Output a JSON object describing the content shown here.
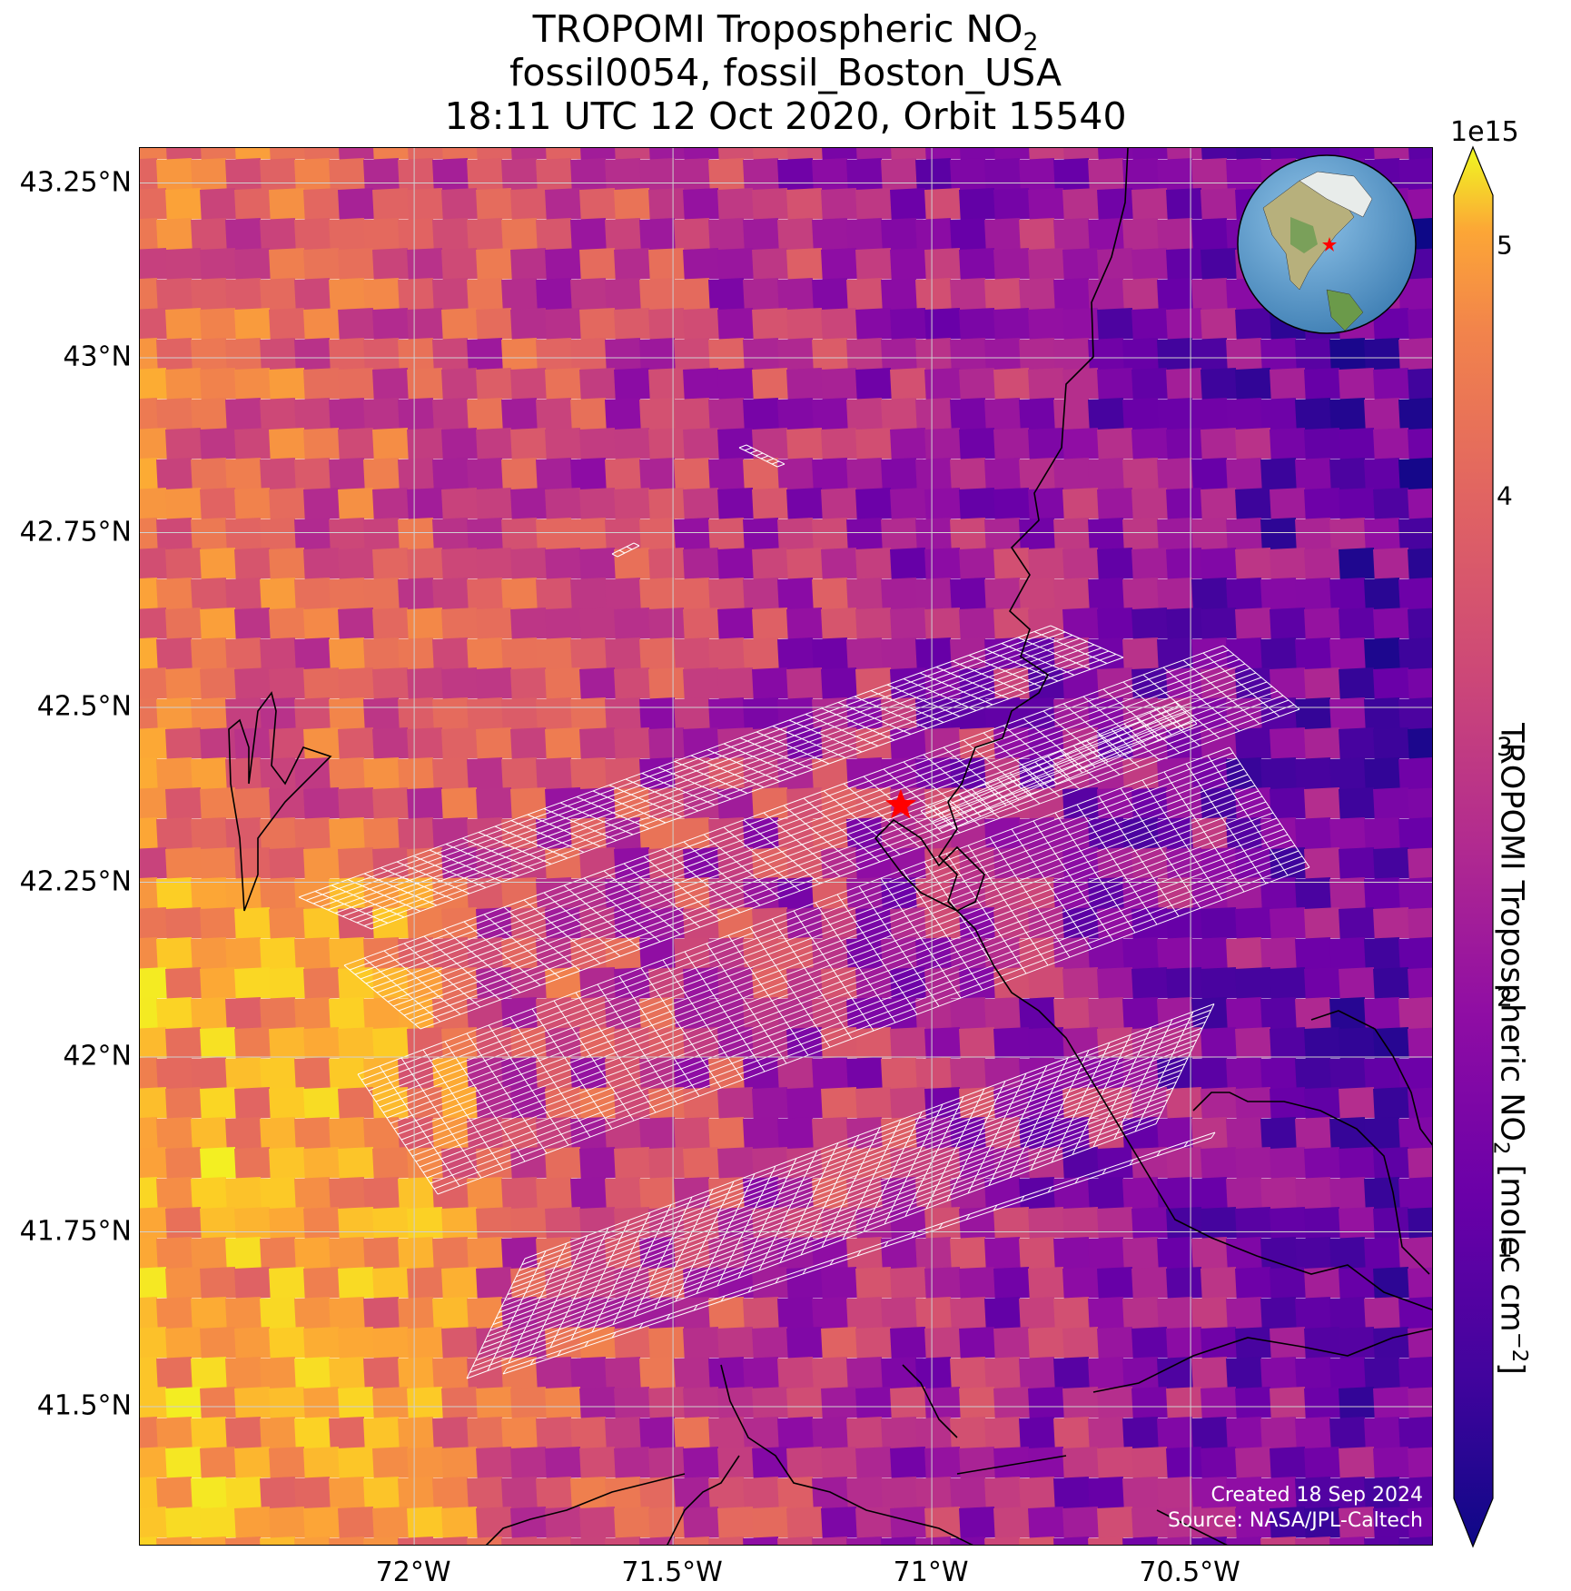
{
  "title": {
    "line1_text": "TROPOMI Tropospheric NO",
    "line1_sub": "2",
    "line2": "fossil0054, fossil_Boston_USA",
    "line3": "18:11 UTC 12 Oct 2020, Orbit 15540"
  },
  "map": {
    "lat_ticks": [
      "43.25°N",
      "43°N",
      "42.75°N",
      "42.5°N",
      "42.25°N",
      "42°N",
      "41.75°N",
      "41.5°N"
    ],
    "lon_ticks": [
      "72°W",
      "71.5°W",
      "71°W",
      "70.5°W"
    ],
    "lat_values": [
      43.25,
      43.0,
      42.75,
      42.5,
      42.25,
      42.0,
      41.75,
      41.5
    ],
    "lon_values": [
      -72.0,
      -71.5,
      -71.0,
      -70.5
    ],
    "extent": {
      "lon_min": -72.53,
      "lon_max": -70.03,
      "lat_min": 41.3,
      "lat_max": 43.3
    },
    "target_marker": {
      "lon": -71.06,
      "lat": 42.36,
      "color": "#ff0000"
    },
    "credit_line1": "Created 18 Sep 2024",
    "credit_line2": "Source: NASA/JPL-Caltech",
    "colormap": "plasma",
    "grid_color": "#d0d0d0",
    "footprint_grid_color": "#ffffff"
  },
  "colorbar": {
    "exponent_label": "1e15",
    "ticks": [
      "1",
      "2",
      "3",
      "4",
      "5"
    ],
    "tick_values": [
      1,
      2,
      3,
      4,
      5
    ],
    "range": [
      0.0,
      5.2
    ],
    "label_main": "TROPOMI Tropospheric NO",
    "label_sub": "2",
    "label_units": " [molec cm",
    "label_sup": "−2",
    "label_end": "]"
  },
  "inset_globe": {
    "marker_color": "#ff0000"
  }
}
